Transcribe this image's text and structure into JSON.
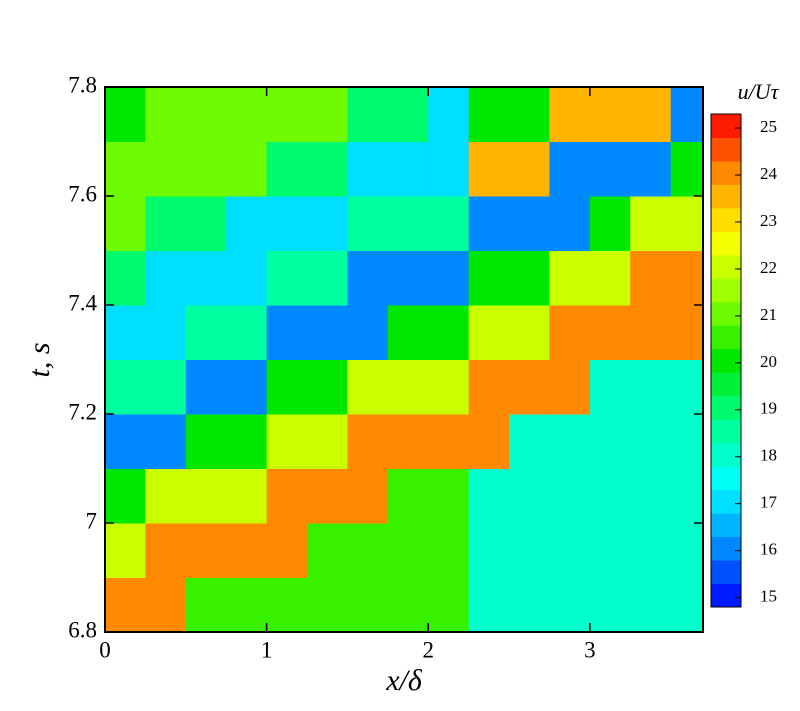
{
  "chart_data": {
    "type": "contour",
    "xlabel": "x/δ",
    "ylabel": "t, s",
    "colorbar_label": "u/Uτ",
    "xlim": [
      0,
      3.7
    ],
    "ylim": [
      6.8,
      7.8
    ],
    "xticks": [
      0,
      1,
      2,
      3
    ],
    "yticks": [
      6.8,
      7,
      7.2,
      7.4,
      7.6,
      7.8
    ],
    "clim": [
      14.8,
      25.3
    ],
    "cticks": [
      15,
      16,
      17,
      18,
      19,
      20,
      21,
      22,
      23,
      24,
      25
    ],
    "level_step": 0.5,
    "colormap": [
      "#0000ff",
      "#0090ff",
      "#00ffff",
      "#00ff90",
      "#00e800",
      "#90ff00",
      "#ffff00",
      "#ff9000",
      "#ff0000"
    ],
    "x_edges": [
      0,
      0.25,
      0.5,
      0.75,
      1,
      1.25,
      1.5,
      1.75,
      2,
      2.25,
      2.5,
      2.75,
      3,
      3.25,
      3.5,
      3.7
    ],
    "y_edges": [
      6.8,
      6.9,
      7,
      7.1,
      7.2,
      7.3,
      7.4,
      7.5,
      7.6,
      7.7,
      7.8
    ],
    "z": [
      [
        24,
        24,
        20.5,
        20.5,
        20.5,
        20.5,
        20.5,
        20.5,
        20.5,
        18,
        18,
        18,
        18,
        18,
        18
      ],
      [
        22,
        24,
        24,
        24,
        24,
        20.5,
        20.5,
        20.5,
        20.5,
        18,
        18,
        18,
        18,
        18,
        18
      ],
      [
        20,
        22,
        22,
        22,
        24,
        24,
        24,
        20.5,
        20.5,
        18,
        18,
        18,
        18,
        18,
        18
      ],
      [
        16,
        16,
        20,
        20,
        22,
        22,
        24,
        24,
        24,
        24,
        18,
        18,
        18,
        18,
        18
      ],
      [
        18.5,
        18.5,
        16,
        16,
        20,
        20,
        22,
        22,
        22,
        24,
        24,
        24,
        18,
        18,
        18
      ],
      [
        17,
        17,
        18.5,
        18.5,
        16,
        16,
        16,
        20,
        20,
        22,
        22,
        24,
        24,
        24,
        24
      ],
      [
        19,
        17,
        17,
        17,
        18.5,
        18.5,
        16,
        16,
        16,
        20,
        20,
        22,
        22,
        24,
        24
      ],
      [
        21,
        19,
        19,
        17,
        17,
        17,
        18.5,
        18.5,
        18.5,
        16,
        16,
        16,
        20,
        22,
        22
      ],
      [
        21,
        21,
        21,
        21,
        19,
        19,
        17,
        17,
        17,
        23.5,
        23.5,
        16,
        16,
        16,
        20
      ],
      [
        20,
        21,
        21,
        21,
        21,
        21,
        19,
        19,
        17,
        20,
        20,
        23.5,
        23.5,
        23.5,
        16
      ]
    ]
  }
}
